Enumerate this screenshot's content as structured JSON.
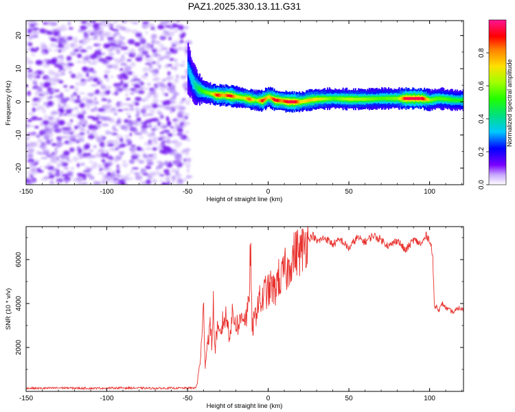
{
  "chart_data": [
    {
      "type": "heatmap",
      "title": "PAZ1.2025.330.13.11.G31",
      "xlabel": "Height of straight line (km)",
      "ylabel": "Frequency (Hz)",
      "xlim": [
        -150,
        121
      ],
      "ylim": [
        -25,
        24.5
      ],
      "xticks": [
        "-150",
        "-100",
        "-50",
        "0",
        "50",
        "100"
      ],
      "yticks": [
        "20",
        "10",
        "0",
        "-10",
        "-20"
      ],
      "noise_region": {
        "x_range": [
          -150,
          -48
        ],
        "y_range": [
          -25,
          24.5
        ],
        "typical_amplitude": 0.1
      },
      "ridge": {
        "description": "narrow high-amplitude band near 0 Hz",
        "x": [
          -50,
          -47,
          -44,
          -40,
          -36,
          -32,
          -28,
          -24,
          -20,
          -16,
          -12,
          -8,
          -4,
          0,
          4,
          8,
          12,
          16,
          20,
          25,
          30,
          40,
          50,
          60,
          70,
          80,
          85,
          90,
          95,
          100,
          105,
          110,
          115,
          121
        ],
        "frequency": [
          10,
          6,
          4,
          3,
          2.5,
          2,
          2,
          1.8,
          1.5,
          1.2,
          0.8,
          0.5,
          0.3,
          1.5,
          0.5,
          0.3,
          0,
          0,
          0,
          0.5,
          0.8,
          1,
          0.8,
          0.8,
          1,
          1,
          1,
          1,
          1,
          0.5,
          1,
          0.8,
          0.5,
          0.5
        ],
        "amplitude": [
          0.3,
          0.35,
          0.45,
          0.55,
          0.6,
          0.9,
          0.75,
          0.95,
          0.7,
          0.65,
          0.85,
          0.6,
          0.9,
          0.7,
          0.95,
          0.8,
          0.95,
          0.95,
          0.7,
          0.75,
          0.7,
          0.55,
          0.65,
          0.6,
          0.55,
          0.6,
          0.95,
          0.95,
          0.95,
          0.6,
          0.55,
          0.55,
          0.5,
          0.5
        ]
      }
    },
    {
      "type": "line",
      "xlabel": "Height of straight line (km)",
      "ylabel": "SNR (10 * v/v)",
      "xlim": [
        -150,
        121
      ],
      "ylim": [
        0,
        7500
      ],
      "xticks": [
        "-150",
        "-100",
        "-50",
        "0",
        "50",
        "100"
      ],
      "yticks": [
        "2000",
        "4000",
        "6000"
      ],
      "series": [
        {
          "name": "SNR",
          "color": "#e8312d",
          "x": [
            -150,
            -140,
            -130,
            -120,
            -110,
            -100,
            -90,
            -80,
            -70,
            -60,
            -50,
            -45,
            -44,
            -42,
            -41,
            -40,
            -39,
            -38,
            -36,
            -35,
            -34,
            -33,
            -32,
            -30,
            -28,
            -26,
            -24,
            -22,
            -20,
            -18,
            -16,
            -14,
            -12,
            -11,
            -10,
            -8,
            -6,
            -4,
            -2,
            0,
            2,
            4,
            6,
            8,
            10,
            12,
            14,
            16,
            18,
            20,
            22,
            24,
            26,
            28,
            30,
            35,
            40,
            45,
            50,
            55,
            60,
            65,
            70,
            75,
            80,
            85,
            90,
            95,
            98,
            100,
            101,
            102,
            103,
            104,
            106,
            108,
            110,
            112,
            115,
            118,
            121
          ],
          "y": [
            150,
            140,
            160,
            150,
            140,
            150,
            160,
            150,
            140,
            150,
            150,
            160,
            350,
            1500,
            2500,
            3800,
            1200,
            2000,
            3000,
            2200,
            4000,
            1800,
            2800,
            2500,
            3200,
            3400,
            2600,
            3500,
            3100,
            3000,
            3600,
            3300,
            3800,
            6800,
            2800,
            3400,
            4200,
            4000,
            4600,
            4500,
            4800,
            4500,
            5200,
            5000,
            5600,
            5400,
            6000,
            6200,
            6400,
            6300,
            6600,
            6900,
            7000,
            7100,
            6800,
            7000,
            6700,
            6900,
            6500,
            7000,
            6800,
            7100,
            6900,
            6600,
            6900,
            6400,
            6900,
            6700,
            7100,
            6900,
            6600,
            6000,
            3800,
            3900,
            3700,
            4000,
            3800,
            3700,
            3600,
            3800,
            3700
          ]
        }
      ]
    }
  ],
  "colorbar": {
    "label": "Normalized spectral amplitude",
    "ticks": [
      "0.0",
      "0.2",
      "0.4",
      "0.6",
      "0.8"
    ],
    "colors": [
      "#ffffff",
      "#8b5cf6",
      "#6a00ff",
      "#0000ff",
      "#00d4ff",
      "#00e060",
      "#40ff00",
      "#ffe000",
      "#ff8000",
      "#ff0000",
      "#ff1493"
    ]
  }
}
